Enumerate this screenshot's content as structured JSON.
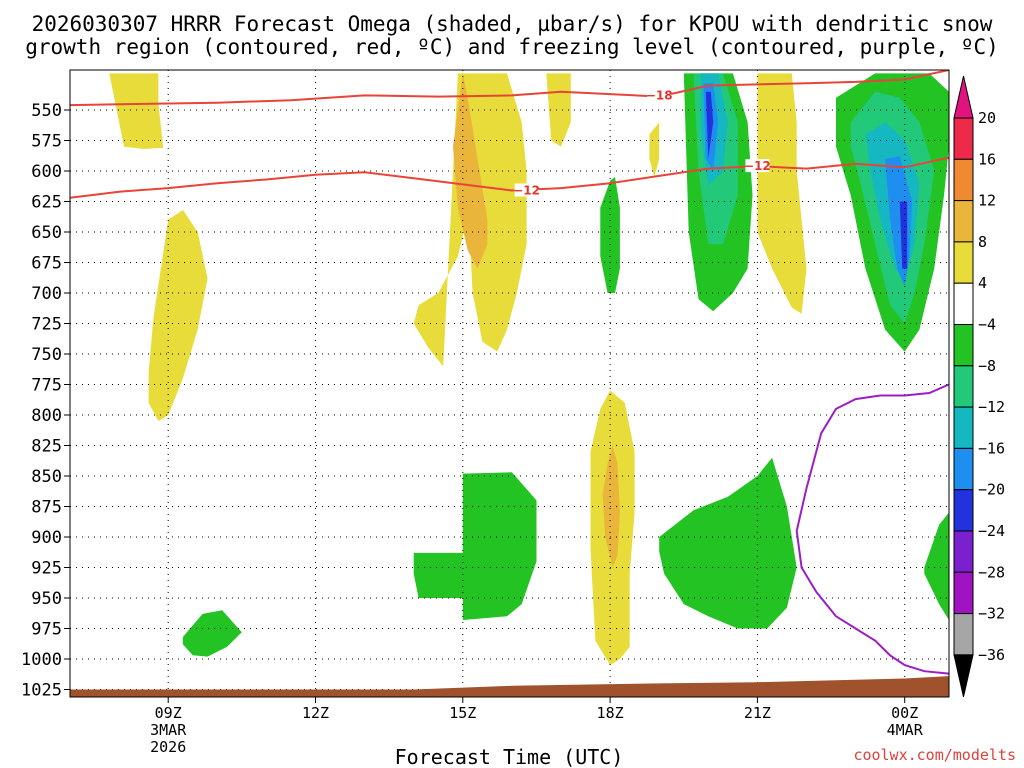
{
  "chart_data": {
    "type": "contour",
    "title_line1": "2026030307 HRRR Forecast Omega (shaded, µbar/s) for KPOU with dendritic snow",
    "title_line2": "growth region (contoured, red, ºC) and freezing level (contoured, purple, ºC)",
    "xlabel": "Forecast Time (UTC)",
    "credit": "coolwx.com/modelts",
    "x_range_hours": [
      7.0,
      24.9
    ],
    "y_range_hpa": [
      520,
      1031
    ],
    "pressure_levels": [
      "550",
      "575",
      "600",
      "625",
      "650",
      "675",
      "700",
      "725",
      "750",
      "775",
      "800",
      "825",
      "850",
      "875",
      "900",
      "925",
      "950",
      "975",
      "1000",
      "1025"
    ],
    "x_ticks": [
      {
        "hour": 9,
        "label": "09Z",
        "sub1": "3MAR",
        "sub2": "2026"
      },
      {
        "hour": 12,
        "label": "12Z",
        "sub1": "",
        "sub2": ""
      },
      {
        "hour": 15,
        "label": "15Z",
        "sub1": "",
        "sub2": ""
      },
      {
        "hour": 18,
        "label": "18Z",
        "sub1": "",
        "sub2": ""
      },
      {
        "hour": 21,
        "label": "21Z",
        "sub1": "",
        "sub2": ""
      },
      {
        "hour": 24,
        "label": "00Z",
        "sub1": "4MAR",
        "sub2": ""
      }
    ],
    "colorbar": {
      "labels": [
        "20",
        "16",
        "12",
        "8",
        "4",
        "-4",
        "-8",
        "-12",
        "-16",
        "-20",
        "-24",
        "-28",
        "-32",
        "-36"
      ],
      "colors": [
        "#ee2a4b",
        "#ef8a33",
        "#e9b53a",
        "#e8dc3b",
        "#ffffff",
        "#22c322",
        "#22c978",
        "#15b7c0",
        "#1e8ff0",
        "#2233dd",
        "#7a20cf",
        "#a112c2",
        "#a6a6a6"
      ],
      "extend_top_color": "#e0137f",
      "extend_bottom_color": "#000000"
    },
    "contour_lines": [
      {
        "name": "dendritic -18",
        "level": "-18",
        "color": "#e8443a",
        "x": [
          7.0,
          8.5,
          10,
          11.5,
          13,
          14.5,
          16,
          17,
          18,
          19,
          20,
          21,
          22,
          23,
          24,
          24.9
        ],
        "p": [
          546,
          545,
          544,
          542,
          538,
          539,
          538,
          535,
          537,
          539,
          530,
          529,
          528,
          527,
          525,
          517
        ]
      },
      {
        "name": "dendritic -12",
        "level": "-12",
        "color": "#e8443a",
        "x": [
          7.0,
          8,
          9,
          10,
          11,
          12,
          13,
          14,
          15,
          16,
          17,
          18,
          19,
          20,
          21,
          22,
          23,
          24,
          24.9
        ],
        "p": [
          622,
          617,
          614,
          610,
          607,
          603,
          601,
          606,
          611,
          616,
          614,
          610,
          604,
          598,
          596,
          598,
          594,
          597,
          589
        ]
      },
      {
        "name": "freezing level 0",
        "level": "0",
        "color": "#9b1ec4",
        "x": [
          24.9,
          24.5,
          24,
          23.5,
          23,
          22.6,
          22.3,
          22.0,
          21.8,
          21.9,
          22.2,
          22.6,
          23,
          23.4,
          23.7,
          24,
          24.4,
          24.9
        ],
        "p": [
          775,
          782,
          784,
          784,
          787,
          795,
          815,
          860,
          895,
          925,
          945,
          965,
          975,
          985,
          997,
          1005,
          1010,
          1012
        ]
      }
    ],
    "shaded_regions": [
      {
        "name": "omega +4 upper left",
        "value_range": "4 to 8",
        "color": "#e8dc3b",
        "x": [
          7.8,
          8.0,
          8.4,
          8.8,
          8.8,
          8.9,
          8.5,
          8.1
        ],
        "p": [
          520,
          520,
          520,
          520,
          545,
          581,
          582,
          580
        ]
      },
      {
        "name": "omega +4 left",
        "value_range": "4 to 8",
        "color": "#e8dc3b",
        "x": [
          8.7,
          9.0,
          9.3,
          9.6,
          9.8,
          9.6,
          9.3,
          9.0,
          8.8,
          8.6,
          8.6
        ],
        "p": [
          720,
          640,
          632,
          650,
          688,
          730,
          770,
          800,
          805,
          790,
          765
        ]
      },
      {
        "name": "omega +4 15Z",
        "value_range": "4 to 8",
        "color": "#e8dc3b",
        "x": [
          14.9,
          15.1,
          15.3,
          15.2,
          14.9,
          14.5,
          14.1,
          14.0,
          14.3,
          14.6
        ],
        "p": [
          520,
          520,
          560,
          620,
          670,
          700,
          710,
          725,
          745,
          760
        ]
      },
      {
        "name": "omega +4 15Z-16Z",
        "value_range": "4 to 8",
        "color": "#e8dc3b",
        "x": [
          15.1,
          15.9,
          16.2,
          16.3,
          16.3,
          16.1,
          15.9,
          15.7,
          15.4,
          15.2,
          15.1
        ],
        "p": [
          520,
          520,
          560,
          600,
          660,
          700,
          730,
          748,
          740,
          700,
          620
        ]
      },
      {
        "name": "omega +8 15Z",
        "value_range": "8 to 12",
        "color": "#e9b53a",
        "x": [
          15.0,
          15.1,
          15.3,
          15.5,
          15.5,
          15.3,
          15.1,
          14.9,
          14.8
        ],
        "p": [
          520,
          540,
          590,
          640,
          660,
          680,
          665,
          630,
          580
        ]
      },
      {
        "name": "omega +4 17Z",
        "value_range": "4 to 8",
        "color": "#e8dc3b",
        "x": [
          16.7,
          16.9,
          17.2,
          17.2,
          17.0,
          16.8
        ],
        "p": [
          520,
          520,
          520,
          560,
          580,
          575
        ]
      },
      {
        "name": "omega +4 19Z",
        "value_range": "4 to 8",
        "color": "#e8dc3b",
        "x": [
          18.8,
          19.0,
          19.0,
          18.9,
          18.8
        ],
        "p": [
          570,
          560,
          590,
          605,
          590
        ]
      },
      {
        "name": "omega +4 21Z",
        "value_range": "4 to 8",
        "color": "#e8dc3b",
        "x": [
          21.0,
          21.7,
          21.8,
          21.8,
          21.9,
          22.0,
          21.9,
          21.7,
          21.3,
          21.0
        ],
        "p": [
          520,
          520,
          560,
          600,
          640,
          680,
          717,
          712,
          680,
          650
        ]
      },
      {
        "name": "omega -4 18Z",
        "value_range": "-4 to -8",
        "color": "#22c322",
        "x": [
          18.0,
          18.1,
          18.2,
          18.2,
          18.1,
          17.95,
          17.8,
          17.8
        ],
        "p": [
          608,
          605,
          630,
          680,
          700,
          700,
          670,
          630
        ]
      },
      {
        "name": "omega -4 20Z",
        "value_range": "-4 to -8",
        "color": "#22c322",
        "x": [
          19.5,
          20.5,
          20.8,
          20.9,
          20.8,
          20.5,
          20.1,
          19.8,
          19.6
        ],
        "p": [
          520,
          520,
          560,
          620,
          680,
          700,
          715,
          705,
          650
        ]
      },
      {
        "name": "omega -8 20Z",
        "value_range": "-8 to -12",
        "color": "#22c978",
        "x": [
          19.7,
          20.3,
          20.6,
          20.6,
          20.3,
          20.0,
          19.8
        ],
        "p": [
          520,
          520,
          560,
          620,
          660,
          660,
          600
        ]
      },
      {
        "name": "omega -12 20Z",
        "value_range": "-12 to -16",
        "color": "#15b7c0",
        "x": [
          19.85,
          20.2,
          20.4,
          20.3,
          20.0,
          19.85
        ],
        "p": [
          520,
          520,
          560,
          600,
          612,
          570
        ]
      },
      {
        "name": "omega -16 20Z",
        "value_range": "-16 to -20",
        "color": "#1e8ff0",
        "x": [
          19.9,
          20.1,
          20.2,
          20.1,
          19.95
        ],
        "p": [
          528,
          528,
          560,
          600,
          590
        ]
      },
      {
        "name": "omega -20 20Z",
        "value_range": "-20 to -24",
        "color": "#2233dd",
        "x": [
          19.95,
          20.05,
          20.1,
          20.0
        ],
        "p": [
          535,
          535,
          560,
          590
        ]
      },
      {
        "name": "omega -4 00Z",
        "value_range": "-4 to -8",
        "color": "#22c322",
        "x": [
          22.6,
          23.4,
          24.0,
          24.5,
          24.9,
          24.9,
          24.9,
          24.8,
          24.6,
          24.3,
          24.0,
          23.6,
          23.2,
          22.9,
          22.6
        ],
        "p": [
          540,
          520,
          520,
          520,
          535,
          560,
          580,
          620,
          680,
          730,
          748,
          730,
          680,
          620,
          580
        ]
      },
      {
        "name": "omega -8 00Z",
        "value_range": "-8 to -12",
        "color": "#22c978",
        "x": [
          22.9,
          23.4,
          23.9,
          24.3,
          24.6,
          24.4,
          24.2,
          24.0,
          23.7,
          23.4,
          23.1,
          22.9
        ],
        "p": [
          560,
          535,
          540,
          560,
          600,
          660,
          700,
          725,
          710,
          660,
          610,
          580
        ]
      },
      {
        "name": "omega -12 00Z",
        "value_range": "-12 to -16",
        "color": "#15b7c0",
        "x": [
          23.2,
          23.6,
          24.0,
          24.3,
          24.2,
          24.0,
          23.8,
          23.5,
          23.3
        ],
        "p": [
          570,
          560,
          575,
          610,
          660,
          690,
          680,
          640,
          600
        ]
      },
      {
        "name": "omega -16 00Z",
        "value_range": "-16 to -20",
        "color": "#1e8ff0",
        "x": [
          23.6,
          23.9,
          24.15,
          24.1,
          24.0,
          23.85,
          23.7
        ],
        "p": [
          590,
          588,
          625,
          670,
          695,
          680,
          640
        ]
      },
      {
        "name": "omega -20 00Z",
        "value_range": "-20 to -24",
        "color": "#2233dd",
        "x": [
          23.9,
          24.05,
          24.05,
          23.95
        ],
        "p": [
          625,
          625,
          680,
          680
        ]
      },
      {
        "name": "omega +4 18Z low",
        "value_range": "4 to 8",
        "color": "#e8dc3b",
        "x": [
          17.6,
          17.8,
          18.0,
          18.3,
          18.5,
          18.5,
          18.4,
          18.4,
          18.2,
          18.0,
          17.7,
          17.6
        ],
        "p": [
          830,
          795,
          780,
          790,
          830,
          880,
          930,
          990,
          1000,
          1005,
          985,
          910
        ]
      },
      {
        "name": "omega +8 18Z low",
        "value_range": "8 to 12",
        "color": "#e9b53a",
        "x": [
          17.95,
          18.05,
          18.15,
          18.2,
          18.15,
          18.05,
          17.9,
          17.85
        ],
        "p": [
          840,
          825,
          840,
          880,
          915,
          925,
          900,
          865
        ]
      },
      {
        "name": "omega -4 09Z low",
        "value_range": "-4 to -8",
        "color": "#22c322",
        "x": [
          9.3,
          9.7,
          10.1,
          10.5,
          10.2,
          9.8,
          9.5,
          9.3
        ],
        "p": [
          982,
          963,
          960,
          978,
          990,
          998,
          997,
          988
        ]
      },
      {
        "name": "omega -4 15Z low",
        "value_range": "-4 to -8",
        "color": "#22c322",
        "x": [
          15.0,
          16.0,
          16.5,
          16.5,
          16.2,
          15.9,
          15.0,
          15.0,
          14.1,
          14.0,
          14.0,
          15.0
        ],
        "p": [
          848,
          847,
          870,
          920,
          955,
          965,
          968,
          950,
          950,
          930,
          913,
          913
        ]
      },
      {
        "name": "omega -4 21Z low",
        "value_range": "-4 to -8",
        "color": "#22c322",
        "x": [
          19.0,
          19.7,
          20.4,
          21.0,
          21.3,
          21.6,
          21.8,
          21.6,
          21.2,
          20.6,
          20.0,
          19.5,
          19.1,
          19.0
        ],
        "p": [
          900,
          878,
          867,
          850,
          835,
          875,
          925,
          958,
          975,
          975,
          965,
          955,
          930,
          912
        ]
      },
      {
        "name": "omega -4 00Z low",
        "value_range": "-4 to -8",
        "color": "#22c322",
        "x": [
          24.4,
          24.7,
          24.9,
          24.9,
          24.7,
          24.4
        ],
        "p": [
          925,
          890,
          880,
          968,
          955,
          930
        ]
      }
    ],
    "terrain": {
      "name": "surface terrain",
      "color": "#a0522d",
      "x": [
        7.0,
        14.0,
        16.0,
        19.0,
        21.0,
        24.0,
        24.9
      ],
      "p": [
        1025,
        1025,
        1022,
        1020,
        1019,
        1016,
        1014
      ]
    }
  }
}
